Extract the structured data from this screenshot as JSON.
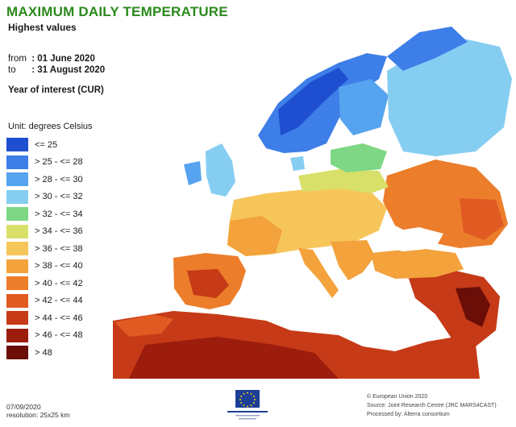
{
  "header": {
    "title": "MAXIMUM DAILY TEMPERATURE",
    "subtitle": "Highest values",
    "from_label": "from",
    "from_value": ": 01 June 2020",
    "to_label": "to",
    "to_value": ": 31 August 2020",
    "year_of_interest": "Year of interest (CUR)"
  },
  "legend": {
    "unit": "Unit: degrees Celsius",
    "items": [
      {
        "label": "<= 25",
        "color": "#1f4fd1"
      },
      {
        "label": "> 25 - <= 28",
        "color": "#3d7ee8"
      },
      {
        "label": "> 28 - <= 30",
        "color": "#56a4ef"
      },
      {
        "label": "> 30 - <= 32",
        "color": "#86cdf2"
      },
      {
        "label": "> 32 - <= 34",
        "color": "#7dd784"
      },
      {
        "label": "> 34 - <= 36",
        "color": "#d9e06a"
      },
      {
        "label": "> 36 - <= 38",
        "color": "#f7c65a"
      },
      {
        "label": "> 38 - <= 40",
        "color": "#f3a23c"
      },
      {
        "label": "> 40 - <= 42",
        "color": "#ec7d2b"
      },
      {
        "label": "> 42 - <= 44",
        "color": "#e05a22"
      },
      {
        "label": "> 44 - <= 46",
        "color": "#c63a17"
      },
      {
        "label": "> 46 - <= 48",
        "color": "#9c1d0d"
      },
      {
        "label": "> 48",
        "color": "#6a0e07"
      }
    ]
  },
  "footer": {
    "date": "07/09/2020",
    "resolution": "resolution: 25x25 km",
    "copyright": "© European Union 2020",
    "source": "Source: Joint Research Centre (JRC MARS4CAST)",
    "processed": "Processed by: Alterra consortium"
  },
  "colors": {
    "title": "#2b8a1c",
    "sea": "#ffffff",
    "eu_blue": "#1d3f95",
    "eu_yellow": "#f5d313"
  }
}
